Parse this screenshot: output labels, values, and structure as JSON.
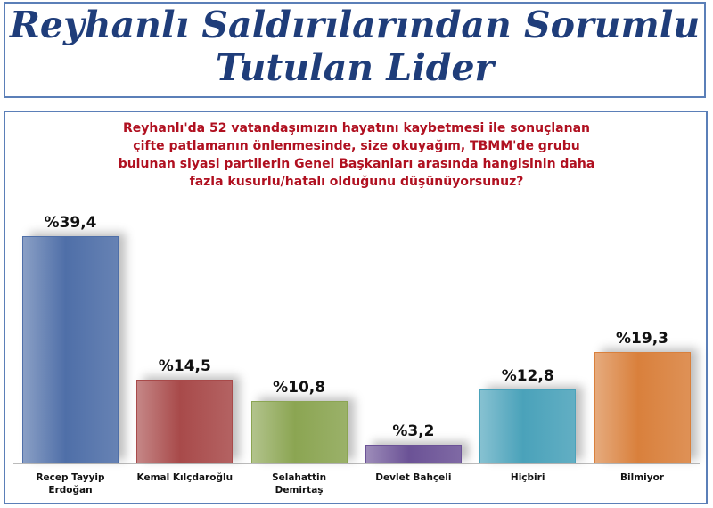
{
  "chart_data": {
    "type": "bar",
    "title": "Reyhanlı Saldırılarından Sorumlu\nTutulan Lider",
    "subtitle": "Reyhanlı'da 52 vatandaşımızın hayatını kaybetmesi ile sonuçlanan\nçifte patlamanın önlenmesinde, size okuyağım, TBMM'de grubu\nbulunan siyasi partilerin Genel Başkanları arasında hangisinin daha\nfazla kusurlu/hatalı olduğunu düşünüyorsunuz?",
    "categories": [
      "Recep Tayyip\nErdoğan",
      "Kemal Kılçdaroğlu",
      "Selahattin\nDemirtaş",
      "Devlet Bahçeli",
      "Hiçbiri",
      "Bilmiyor"
    ],
    "values": [
      39.4,
      14.5,
      10.8,
      3.2,
      12.8,
      19.3
    ],
    "value_labels": [
      "%39,4",
      "%14,5",
      "%10,8",
      "%3,2",
      "%12,8",
      "%19,3"
    ],
    "colors": [
      "#4f6fa8",
      "#a84a4a",
      "#8ba552",
      "#6b5296",
      "#4aa2ba",
      "#d9803c"
    ]
  }
}
